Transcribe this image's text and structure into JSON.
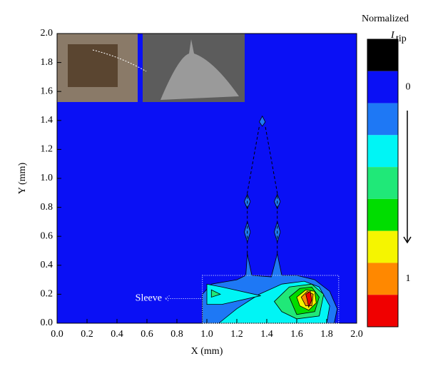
{
  "chart_data": {
    "type": "contour",
    "xlabel": "X (mm)",
    "ylabel": "Y (mm)",
    "xlim": [
      0,
      2
    ],
    "ylim": [
      0,
      2
    ],
    "xticks": [
      {
        "value": 0,
        "label": "0.0"
      },
      {
        "value": 0.2,
        "label": "0.2"
      },
      {
        "value": 0.4,
        "label": "0.4"
      },
      {
        "value": 0.6,
        "label": "0.6"
      },
      {
        "value": 0.8,
        "label": "0.8"
      },
      {
        "value": 1,
        "label": "1.0"
      },
      {
        "value": 1.2,
        "label": "1.2"
      },
      {
        "value": 1.4,
        "label": "1.4"
      },
      {
        "value": 1.6,
        "label": "1.6"
      },
      {
        "value": 1.8,
        "label": "1.8"
      },
      {
        "value": 2,
        "label": "2.0"
      }
    ],
    "yticks": [
      {
        "value": 0,
        "label": "0.0"
      },
      {
        "value": 0.2,
        "label": "0.2"
      },
      {
        "value": 0.4,
        "label": "0.4"
      },
      {
        "value": 0.6,
        "label": "0.6"
      },
      {
        "value": 0.8,
        "label": "0.8"
      },
      {
        "value": 1,
        "label": "1.0"
      },
      {
        "value": 1.2,
        "label": "1.2"
      },
      {
        "value": 1.4,
        "label": "1.4"
      },
      {
        "value": 1.6,
        "label": "1.6"
      },
      {
        "value": 1.8,
        "label": "1.8"
      },
      {
        "value": 2,
        "label": "2.0"
      }
    ],
    "background": "#0a10f5",
    "regions": [
      {
        "color": "#1e78f5",
        "points": [
          [
            0.97,
            0
          ],
          [
            0.97,
            0.2
          ],
          [
            1.03,
            0.27
          ],
          [
            1.2,
            0.3
          ],
          [
            1.26,
            0.33
          ],
          [
            1.27,
            0.48
          ],
          [
            1.3,
            0.33
          ],
          [
            1.43,
            0.32
          ],
          [
            1.47,
            0.48
          ],
          [
            1.5,
            0.33
          ],
          [
            1.6,
            0.33
          ],
          [
            1.72,
            0.3
          ],
          [
            1.82,
            0.22
          ],
          [
            1.87,
            0.1
          ],
          [
            1.85,
            0
          ]
        ]
      },
      {
        "color": "#1e78f5",
        "points": [
          [
            1.27,
            0.56
          ],
          [
            1.29,
            0.63
          ],
          [
            1.27,
            0.7
          ],
          [
            1.25,
            0.63
          ]
        ]
      },
      {
        "color": "#1e78f5",
        "points": [
          [
            1.27,
            0.79
          ],
          [
            1.29,
            0.84
          ],
          [
            1.27,
            0.89
          ],
          [
            1.25,
            0.84
          ]
        ]
      },
      {
        "color": "#1e78f5",
        "points": [
          [
            1.47,
            0.56
          ],
          [
            1.49,
            0.63
          ],
          [
            1.47,
            0.7
          ],
          [
            1.45,
            0.63
          ]
        ]
      },
      {
        "color": "#1e78f5",
        "points": [
          [
            1.47,
            0.79
          ],
          [
            1.49,
            0.84
          ],
          [
            1.47,
            0.89
          ],
          [
            1.45,
            0.84
          ]
        ]
      },
      {
        "color": "#1e78f5",
        "points": [
          [
            1.37,
            1.36
          ],
          [
            1.39,
            1.39
          ],
          [
            1.37,
            1.43
          ],
          [
            1.35,
            1.39
          ]
        ]
      },
      {
        "color": "#00f5f5",
        "points": [
          [
            1.08,
            0
          ],
          [
            1.2,
            0.1
          ],
          [
            1.35,
            0.2
          ],
          [
            1.5,
            0.27
          ],
          [
            1.65,
            0.29
          ],
          [
            1.75,
            0.25
          ],
          [
            1.82,
            0.12
          ],
          [
            1.8,
            0
          ]
        ]
      },
      {
        "color": "#00f5f5",
        "points": [
          [
            1.0,
            0.13
          ],
          [
            1.0,
            0.27
          ],
          [
            1.1,
            0.25
          ],
          [
            1.36,
            0.19
          ],
          [
            1.1,
            0.13
          ]
        ]
      },
      {
        "color": "#20e878",
        "points": [
          [
            1.03,
            0.18
          ],
          [
            1.03,
            0.23
          ],
          [
            1.09,
            0.2
          ]
        ]
      },
      {
        "color": "#20e878",
        "points": [
          [
            1.45,
            0.15
          ],
          [
            1.55,
            0.25
          ],
          [
            1.7,
            0.27
          ],
          [
            1.78,
            0.2
          ],
          [
            1.75,
            0.05
          ],
          [
            1.6,
            0.03
          ],
          [
            1.5,
            0.08
          ]
        ]
      },
      {
        "color": "#00dd00",
        "points": [
          [
            1.55,
            0.18
          ],
          [
            1.62,
            0.24
          ],
          [
            1.7,
            0.25
          ],
          [
            1.75,
            0.18
          ],
          [
            1.72,
            0.08
          ],
          [
            1.6,
            0.06
          ]
        ]
      },
      {
        "color": "#f5f500",
        "points": [
          [
            1.6,
            0.18
          ],
          [
            1.66,
            0.23
          ],
          [
            1.72,
            0.22
          ],
          [
            1.73,
            0.14
          ],
          [
            1.68,
            0.09
          ],
          [
            1.62,
            0.12
          ]
        ]
      },
      {
        "color": "#ff8800",
        "points": [
          [
            1.63,
            0.18
          ],
          [
            1.67,
            0.22
          ],
          [
            1.71,
            0.2
          ],
          [
            1.7,
            0.12
          ],
          [
            1.66,
            0.12
          ]
        ]
      },
      {
        "color": "#f00000",
        "points": [
          [
            1.66,
            0.2
          ],
          [
            1.69,
            0.22
          ],
          [
            1.7,
            0.16
          ],
          [
            1.68,
            0.11
          ],
          [
            1.67,
            0.16
          ]
        ]
      }
    ],
    "annotation": "Sleeve",
    "colorbar": {
      "title": "Normalized",
      "symbol": "I",
      "subscript": "tip",
      "zlim": [
        -0.25,
        1.25
      ],
      "colors": [
        "#000000",
        "#0a10f5",
        "#1e78f5",
        "#00f5f5",
        "#20e878",
        "#00dd00",
        "#f5f500",
        "#ff8800",
        "#f00000"
      ],
      "ticks": [
        0,
        1
      ]
    }
  }
}
